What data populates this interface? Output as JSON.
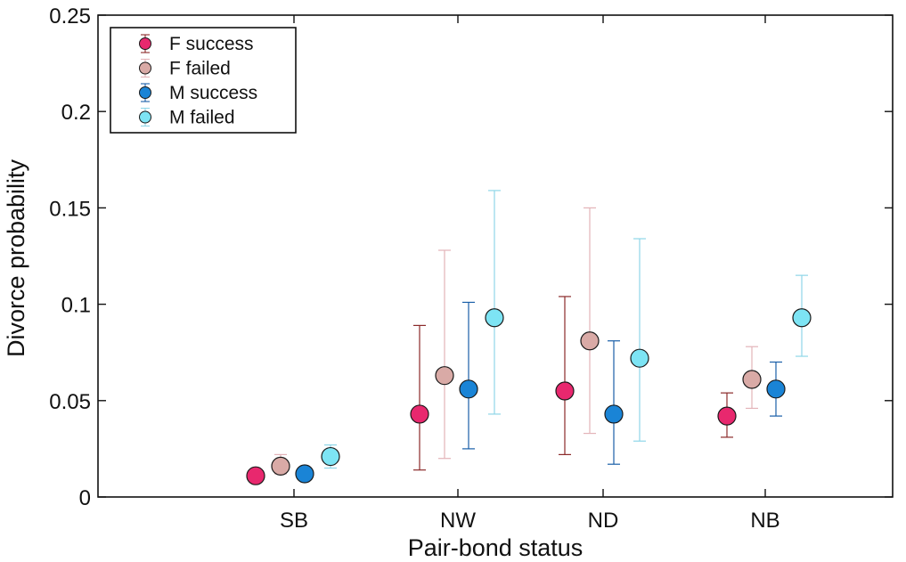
{
  "chart_data": {
    "type": "scatter",
    "xlabel": "Pair-bond status",
    "ylabel": "Divorce probability",
    "categories": [
      "SB",
      "NW",
      "ND",
      "NB"
    ],
    "ylim": [
      0,
      0.25
    ],
    "yticks": [
      "0",
      "0.05",
      "0.1",
      "0.15",
      "0.2",
      "0.25"
    ],
    "grid": false,
    "legend_position": "top-left",
    "series": [
      {
        "name": "F success",
        "color": "#e8286e",
        "values": [
          0.011,
          0.043,
          0.055,
          0.042
        ],
        "lower": [
          0.01,
          0.014,
          0.022,
          0.031
        ],
        "upper": [
          0.012,
          0.089,
          0.104,
          0.054
        ]
      },
      {
        "name": "F failed",
        "color": "#d9aaa6",
        "errcolor": "#e3b3b8",
        "values": [
          0.016,
          0.063,
          0.081,
          0.061
        ],
        "lower": [
          0.012,
          0.02,
          0.033,
          0.046
        ],
        "upper": [
          0.022,
          0.128,
          0.15,
          0.078
        ]
      },
      {
        "name": "M success",
        "color": "#1a84d6",
        "errcolor": "#1a5fa8",
        "values": [
          0.012,
          0.056,
          0.043,
          0.056
        ],
        "lower": [
          0.01,
          0.025,
          0.017,
          0.042
        ],
        "upper": [
          0.014,
          0.101,
          0.081,
          0.07
        ]
      },
      {
        "name": "M failed",
        "color": "#7de4f4",
        "errcolor": "#8fd6e8",
        "values": [
          0.021,
          0.093,
          0.072,
          0.093
        ],
        "lower": [
          0.015,
          0.043,
          0.029,
          0.073
        ],
        "upper": [
          0.027,
          0.159,
          0.134,
          0.115
        ]
      }
    ]
  }
}
